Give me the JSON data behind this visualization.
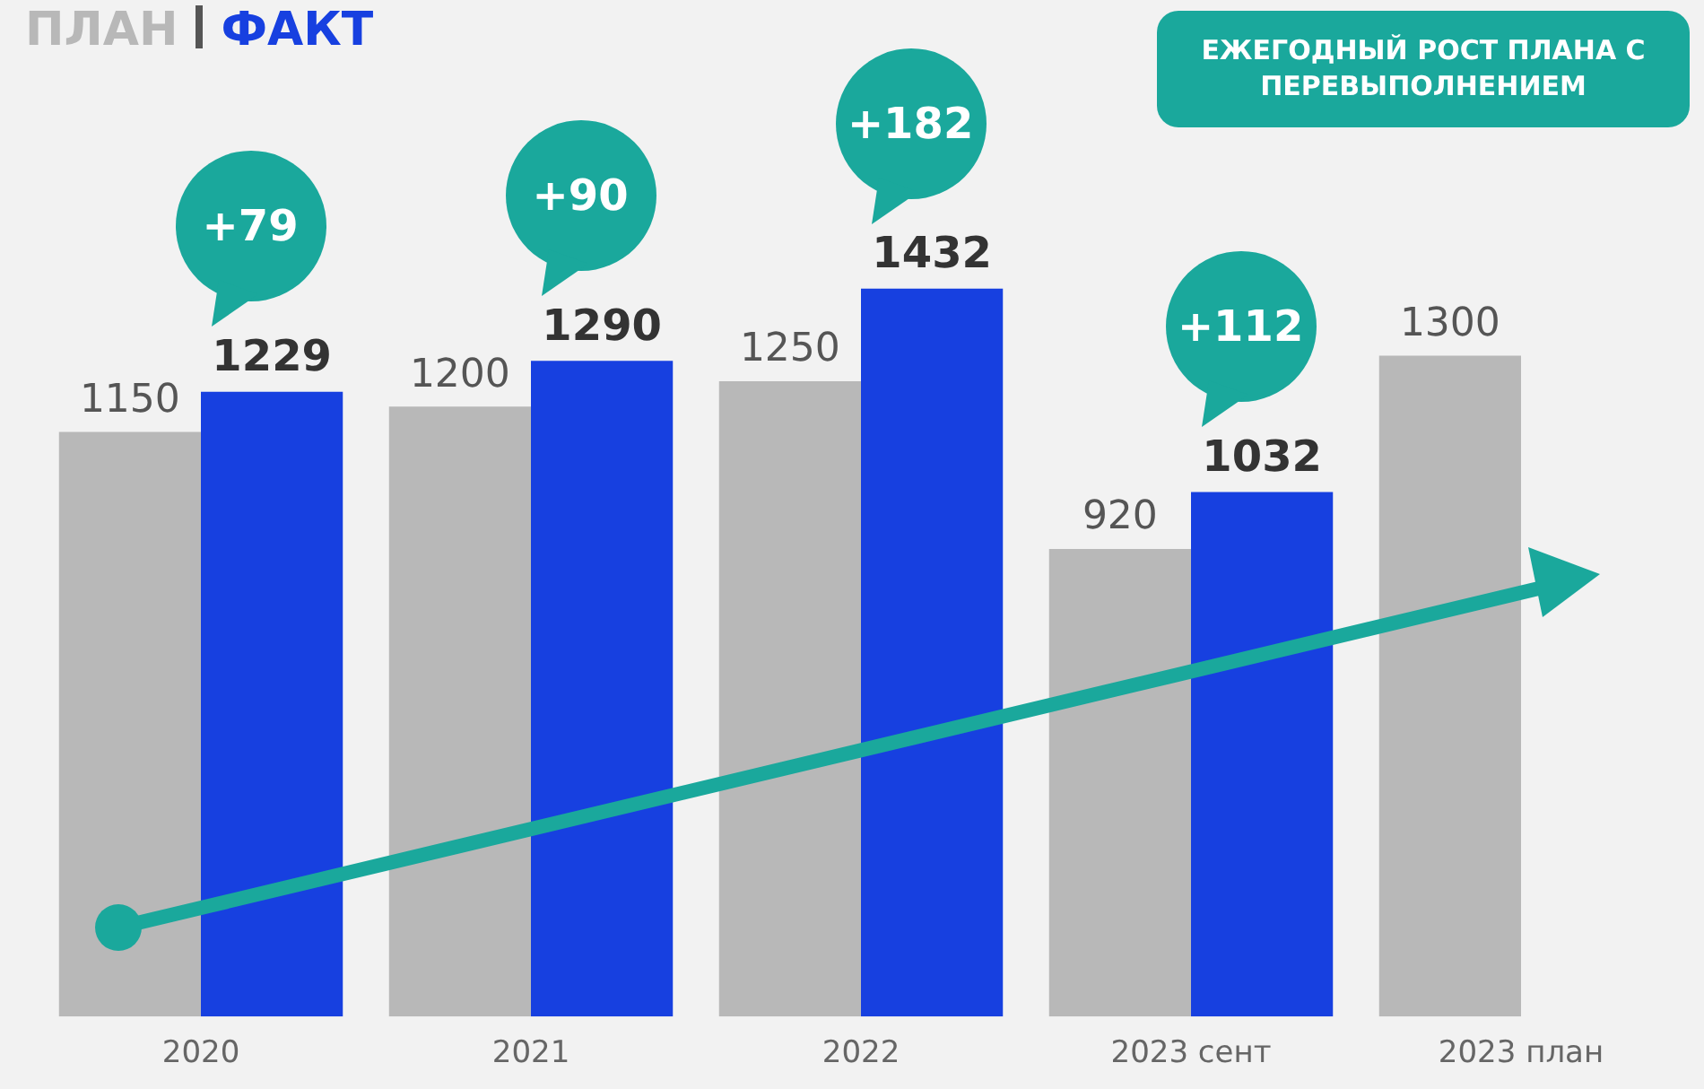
{
  "chart_data": {
    "type": "bar",
    "categories": [
      "2020",
      "2021",
      "2022",
      "2023 сент",
      "2023 план"
    ],
    "series": [
      {
        "name": "ПЛАН",
        "color": "#b8b8b8",
        "values": [
          1150,
          1200,
          1250,
          920,
          1300
        ]
      },
      {
        "name": "ФАКТ",
        "color": "#1740e0",
        "values": [
          1229,
          1290,
          1432,
          1032,
          null
        ]
      }
    ],
    "data_labels": true,
    "legend": "top left",
    "annotations": [
      "+79",
      "+90",
      "+182",
      "+112",
      "ЕЖЕГОДНЫЙ РОСТ ПЛАНА С ПЕРЕВЫПОЛНЕНИЕМ"
    ]
  }
}
